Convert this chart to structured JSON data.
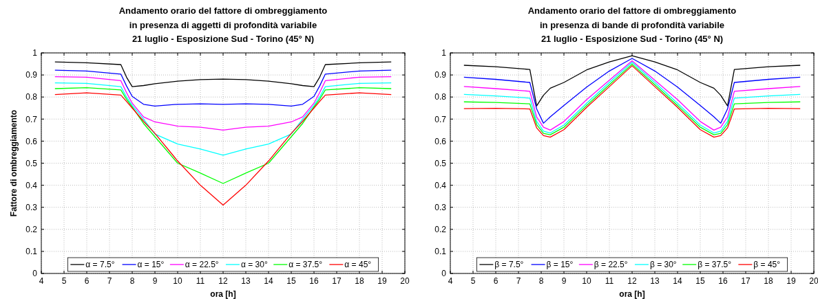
{
  "chart_data": [
    {
      "type": "line",
      "title": "Andamento orario del fattore di ombreggiamento\nin presenza di aggetti di profondità variabile\n21 luglio - Esposizione Sud - Torino (45° N)",
      "xlabel": "ora [h]",
      "ylabel": "Fattore di ombreggiamento",
      "x": [
        4.6,
        6,
        7.5,
        7.75,
        8,
        8.5,
        9,
        10,
        11,
        12,
        13,
        14,
        15,
        15.5,
        16,
        16.25,
        16.5,
        18,
        19.4
      ],
      "xlim": [
        4,
        20
      ],
      "xticks": [
        4,
        5,
        6,
        7,
        8,
        9,
        10,
        11,
        12,
        13,
        14,
        15,
        16,
        17,
        18,
        19,
        20
      ],
      "ylim": [
        0,
        1
      ],
      "yticks": [
        0,
        0.1,
        0.2,
        0.3,
        0.4,
        0.5,
        0.6,
        0.7,
        0.8,
        0.9,
        1
      ],
      "grid": true,
      "legend": "bottom",
      "line_style": "solid",
      "series": [
        {
          "name": "α = 7.5°",
          "color": "#000000",
          "values": [
            0.959,
            0.955,
            0.947,
            0.89,
            0.847,
            0.852,
            0.86,
            0.872,
            0.879,
            0.881,
            0.879,
            0.872,
            0.86,
            0.852,
            0.847,
            0.89,
            0.947,
            0.955,
            0.959
          ]
        },
        {
          "name": "α = 15°",
          "color": "#0000ff",
          "values": [
            0.922,
            0.918,
            0.904,
            0.85,
            0.803,
            0.767,
            0.759,
            0.767,
            0.769,
            0.767,
            0.769,
            0.767,
            0.759,
            0.767,
            0.803,
            0.85,
            0.904,
            0.918,
            0.922
          ]
        },
        {
          "name": "α = 22.5°",
          "color": "#ff00ff",
          "values": [
            0.892,
            0.89,
            0.874,
            0.82,
            0.772,
            0.71,
            0.687,
            0.668,
            0.663,
            0.65,
            0.663,
            0.668,
            0.687,
            0.71,
            0.772,
            0.82,
            0.874,
            0.89,
            0.892
          ]
        },
        {
          "name": "α = 30°",
          "color": "#00ffff",
          "values": [
            0.864,
            0.862,
            0.847,
            0.8,
            0.762,
            0.7,
            0.632,
            0.587,
            0.564,
            0.536,
            0.564,
            0.587,
            0.632,
            0.7,
            0.762,
            0.8,
            0.847,
            0.862,
            0.864
          ]
        },
        {
          "name": "α = 37.5°",
          "color": "#00ff00",
          "values": [
            0.838,
            0.842,
            0.832,
            0.79,
            0.755,
            0.68,
            0.62,
            0.5,
            0.455,
            0.408,
            0.455,
            0.5,
            0.62,
            0.68,
            0.755,
            0.79,
            0.832,
            0.842,
            0.838
          ]
        },
        {
          "name": "α = 45°",
          "color": "#ff0000",
          "values": [
            0.811,
            0.819,
            0.809,
            0.78,
            0.75,
            0.69,
            0.635,
            0.51,
            0.4,
            0.31,
            0.4,
            0.51,
            0.635,
            0.69,
            0.75,
            0.78,
            0.809,
            0.819,
            0.811
          ]
        }
      ]
    },
    {
      "type": "line",
      "title": "Andamento orario del fattore di ombreggiamento\nin presenza di bande di profondità variabile\n21 luglio - Esposizione Sud - Torino (45° N)",
      "xlabel": "ora [h]",
      "x": [
        4.6,
        6,
        7.5,
        7.8,
        8.1,
        8.4,
        9,
        10,
        11,
        12,
        13,
        14,
        15,
        15.6,
        15.9,
        16.2,
        16.5,
        18,
        19.4
      ],
      "xlim": [
        4,
        20
      ],
      "xticks": [
        4,
        5,
        6,
        7,
        8,
        9,
        10,
        11,
        12,
        13,
        14,
        15,
        16,
        17,
        18,
        19,
        20
      ],
      "ylim": [
        0,
        1
      ],
      "yticks": [
        0,
        0.1,
        0.2,
        0.3,
        0.4,
        0.5,
        0.6,
        0.7,
        0.8,
        0.9,
        1
      ],
      "grid": true,
      "legend": "bottom",
      "line_style": "solid",
      "series": [
        {
          "name": "β = 7.5°",
          "color": "#000000",
          "values": [
            0.944,
            0.937,
            0.925,
            0.76,
            0.808,
            0.84,
            0.866,
            0.923,
            0.959,
            0.987,
            0.959,
            0.923,
            0.866,
            0.84,
            0.808,
            0.76,
            0.925,
            0.937,
            0.944
          ]
        },
        {
          "name": "β = 15°",
          "color": "#0000ff",
          "values": [
            0.89,
            0.88,
            0.866,
            0.746,
            0.681,
            0.71,
            0.762,
            0.845,
            0.918,
            0.975,
            0.918,
            0.845,
            0.762,
            0.71,
            0.681,
            0.746,
            0.866,
            0.88,
            0.89
          ]
        },
        {
          "name": "β = 22.5°",
          "color": "#ff00ff",
          "values": [
            0.848,
            0.838,
            0.826,
            0.71,
            0.663,
            0.65,
            0.689,
            0.788,
            0.876,
            0.964,
            0.876,
            0.788,
            0.689,
            0.65,
            0.663,
            0.71,
            0.826,
            0.838,
            0.848
          ]
        },
        {
          "name": "β = 30°",
          "color": "#00ffff",
          "values": [
            0.812,
            0.805,
            0.795,
            0.69,
            0.645,
            0.637,
            0.673,
            0.772,
            0.866,
            0.957,
            0.866,
            0.772,
            0.673,
            0.637,
            0.645,
            0.69,
            0.795,
            0.805,
            0.812
          ]
        },
        {
          "name": "β = 37.5°",
          "color": "#00ff00",
          "values": [
            0.778,
            0.775,
            0.769,
            0.675,
            0.635,
            0.629,
            0.663,
            0.762,
            0.856,
            0.949,
            0.856,
            0.762,
            0.663,
            0.629,
            0.635,
            0.675,
            0.769,
            0.775,
            0.778
          ]
        },
        {
          "name": "β = 45°",
          "color": "#ff0000",
          "values": [
            0.747,
            0.749,
            0.746,
            0.66,
            0.625,
            0.618,
            0.652,
            0.753,
            0.847,
            0.942,
            0.847,
            0.753,
            0.652,
            0.618,
            0.625,
            0.66,
            0.746,
            0.749,
            0.747
          ]
        }
      ]
    }
  ]
}
